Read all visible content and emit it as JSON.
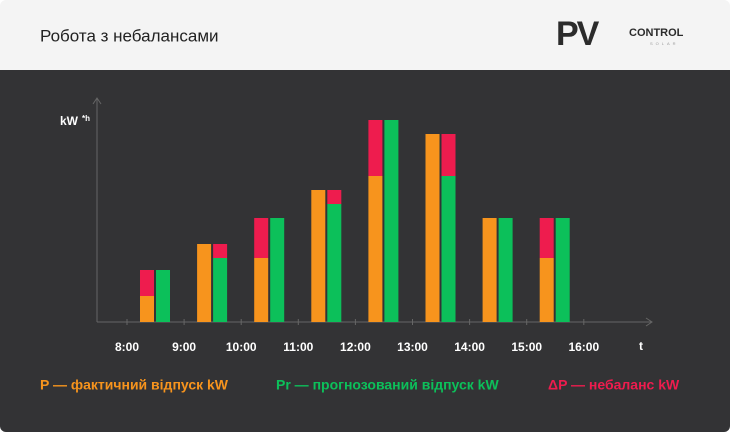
{
  "header": {
    "title": "Робота з небалансами",
    "logo": {
      "mark": "PV",
      "word": "CONTROL",
      "sub": "SOLAR"
    }
  },
  "chart_data": {
    "type": "bar",
    "y_label": "kW",
    "y_label_sup": "*h",
    "x_label": "t",
    "categories": [
      "8:00",
      "9:00",
      "10:00",
      "11:00",
      "12:00",
      "13:00",
      "14:00",
      "15:00",
      "16:00"
    ],
    "ylim": [
      0,
      220
    ],
    "series": [
      {
        "name": "P — фактичний відпуск kW",
        "color": "#f7941d",
        "values": [
          26,
          78,
          64,
          132,
          146,
          188,
          104,
          64,
          null
        ]
      },
      {
        "name": "Pr — прогнозований відпуск kW",
        "color": "#0cc05a",
        "values": [
          52,
          64,
          104,
          118,
          202,
          146,
          104,
          104,
          null
        ]
      },
      {
        "name": "ΔP — небаланс kW",
        "color": "#ee1c4e",
        "values": [
          26,
          14,
          40,
          14,
          56,
          42,
          0,
          40,
          null
        ]
      }
    ]
  }
}
